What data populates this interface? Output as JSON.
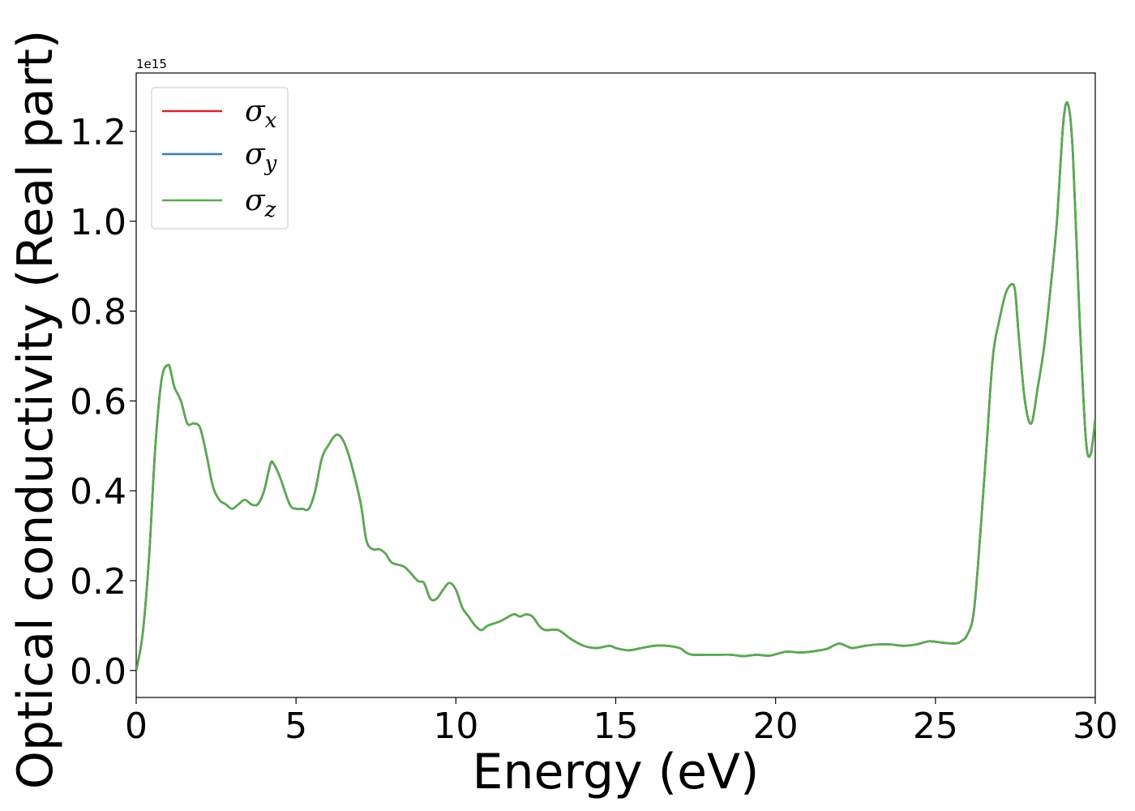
{
  "chart_data": {
    "type": "line",
    "title": "",
    "xlabel": "Energy (eV)",
    "ylabel": "Optical conductivity (Real part)",
    "y_offset_text": "1e15",
    "xlim": [
      0,
      30
    ],
    "ylim": [
      -0.06,
      1.33
    ],
    "y_scale_factor": 1000000000000000.0,
    "xticks": [
      0,
      5,
      10,
      15,
      20,
      25,
      30
    ],
    "xtick_labels": [
      "0",
      "5",
      "10",
      "15",
      "20",
      "25",
      "30"
    ],
    "yticks": [
      0.0,
      0.2,
      0.4,
      0.6,
      0.8,
      1.0,
      1.2
    ],
    "ytick_labels": [
      "0.0",
      "0.2",
      "0.4",
      "0.6",
      "0.8",
      "1.0",
      "1.2"
    ],
    "grid": false,
    "legend_position": "top-left",
    "x": [
      0,
      0.2,
      0.4,
      0.6,
      0.8,
      1.0,
      1.1,
      1.2,
      1.4,
      1.6,
      1.8,
      2.0,
      2.2,
      2.4,
      2.6,
      2.8,
      3.0,
      3.2,
      3.4,
      3.6,
      3.8,
      4.0,
      4.2,
      4.3,
      4.5,
      4.8,
      5.0,
      5.2,
      5.4,
      5.6,
      5.8,
      6.0,
      6.3,
      6.6,
      7.0,
      7.2,
      7.4,
      7.6,
      7.8,
      8.0,
      8.4,
      8.8,
      9.0,
      9.2,
      9.4,
      9.6,
      9.8,
      10.0,
      10.2,
      10.4,
      10.6,
      10.8,
      11.0,
      11.4,
      11.8,
      12.0,
      12.2,
      12.4,
      12.6,
      12.8,
      13.2,
      13.6,
      14.0,
      14.4,
      14.8,
      15.0,
      15.4,
      15.8,
      16.2,
      16.6,
      17.0,
      17.2,
      17.4,
      17.8,
      18.2,
      18.6,
      19.0,
      19.4,
      19.8,
      20.2,
      20.4,
      20.8,
      21.2,
      21.6,
      21.8,
      22.0,
      22.2,
      22.4,
      22.8,
      23.2,
      23.6,
      24.0,
      24.4,
      24.8,
      25.2,
      25.6,
      25.8,
      26.0,
      26.2,
      26.4,
      26.6,
      26.8,
      27.0,
      27.2,
      27.4,
      27.5,
      27.6,
      27.8,
      28.0,
      28.2,
      28.4,
      28.6,
      28.8,
      29.0,
      29.15,
      29.3,
      29.5,
      29.7,
      29.85,
      30.0
    ],
    "series": [
      {
        "name": "σx",
        "color": "#d62728",
        "values": [
          0.0,
          0.08,
          0.25,
          0.5,
          0.65,
          0.68,
          0.66,
          0.63,
          0.6,
          0.55,
          0.55,
          0.54,
          0.48,
          0.41,
          0.38,
          0.37,
          0.36,
          0.37,
          0.38,
          0.37,
          0.37,
          0.4,
          0.46,
          0.46,
          0.43,
          0.37,
          0.36,
          0.36,
          0.36,
          0.4,
          0.47,
          0.5,
          0.525,
          0.49,
          0.38,
          0.29,
          0.27,
          0.27,
          0.26,
          0.24,
          0.23,
          0.2,
          0.195,
          0.16,
          0.16,
          0.18,
          0.195,
          0.18,
          0.14,
          0.12,
          0.1,
          0.09,
          0.1,
          0.11,
          0.125,
          0.12,
          0.125,
          0.12,
          0.1,
          0.09,
          0.09,
          0.07,
          0.055,
          0.05,
          0.055,
          0.05,
          0.045,
          0.05,
          0.055,
          0.055,
          0.05,
          0.04,
          0.035,
          0.035,
          0.035,
          0.035,
          0.032,
          0.035,
          0.033,
          0.04,
          0.042,
          0.04,
          0.043,
          0.048,
          0.055,
          0.06,
          0.055,
          0.05,
          0.055,
          0.058,
          0.058,
          0.055,
          0.058,
          0.065,
          0.062,
          0.06,
          0.065,
          0.08,
          0.13,
          0.3,
          0.5,
          0.7,
          0.78,
          0.84,
          0.86,
          0.84,
          0.75,
          0.6,
          0.55,
          0.63,
          0.72,
          0.85,
          1.0,
          1.22,
          1.26,
          1.15,
          0.8,
          0.52,
          0.48,
          0.56
        ]
      },
      {
        "name": "σy",
        "color": "#3b7cb5",
        "values": [
          0.0,
          0.08,
          0.25,
          0.5,
          0.65,
          0.68,
          0.66,
          0.63,
          0.6,
          0.55,
          0.55,
          0.54,
          0.48,
          0.41,
          0.38,
          0.37,
          0.36,
          0.37,
          0.38,
          0.37,
          0.37,
          0.4,
          0.46,
          0.46,
          0.43,
          0.37,
          0.36,
          0.36,
          0.36,
          0.4,
          0.47,
          0.5,
          0.525,
          0.49,
          0.38,
          0.29,
          0.27,
          0.27,
          0.26,
          0.24,
          0.23,
          0.2,
          0.195,
          0.16,
          0.16,
          0.18,
          0.195,
          0.18,
          0.14,
          0.12,
          0.1,
          0.09,
          0.1,
          0.11,
          0.125,
          0.12,
          0.125,
          0.12,
          0.1,
          0.09,
          0.09,
          0.07,
          0.055,
          0.05,
          0.055,
          0.05,
          0.045,
          0.05,
          0.055,
          0.055,
          0.05,
          0.04,
          0.035,
          0.035,
          0.035,
          0.035,
          0.032,
          0.035,
          0.033,
          0.04,
          0.042,
          0.04,
          0.043,
          0.048,
          0.055,
          0.06,
          0.055,
          0.05,
          0.055,
          0.058,
          0.058,
          0.055,
          0.058,
          0.065,
          0.062,
          0.06,
          0.065,
          0.08,
          0.13,
          0.3,
          0.5,
          0.7,
          0.78,
          0.84,
          0.86,
          0.84,
          0.75,
          0.6,
          0.55,
          0.63,
          0.72,
          0.85,
          1.0,
          1.22,
          1.26,
          1.15,
          0.8,
          0.52,
          0.48,
          0.56
        ]
      },
      {
        "name": "σz",
        "color": "#59ab4d",
        "values": [
          0.0,
          0.08,
          0.25,
          0.5,
          0.65,
          0.68,
          0.66,
          0.63,
          0.6,
          0.55,
          0.55,
          0.54,
          0.48,
          0.41,
          0.38,
          0.37,
          0.36,
          0.37,
          0.38,
          0.37,
          0.37,
          0.4,
          0.46,
          0.46,
          0.43,
          0.37,
          0.36,
          0.36,
          0.36,
          0.4,
          0.47,
          0.5,
          0.525,
          0.49,
          0.38,
          0.29,
          0.27,
          0.27,
          0.26,
          0.24,
          0.23,
          0.2,
          0.195,
          0.16,
          0.16,
          0.18,
          0.195,
          0.18,
          0.14,
          0.12,
          0.1,
          0.09,
          0.1,
          0.11,
          0.125,
          0.12,
          0.125,
          0.12,
          0.1,
          0.09,
          0.09,
          0.07,
          0.055,
          0.05,
          0.055,
          0.05,
          0.045,
          0.05,
          0.055,
          0.055,
          0.05,
          0.04,
          0.035,
          0.035,
          0.035,
          0.035,
          0.032,
          0.035,
          0.033,
          0.04,
          0.042,
          0.04,
          0.043,
          0.048,
          0.055,
          0.06,
          0.055,
          0.05,
          0.055,
          0.058,
          0.058,
          0.055,
          0.058,
          0.065,
          0.062,
          0.06,
          0.065,
          0.08,
          0.13,
          0.3,
          0.5,
          0.7,
          0.78,
          0.84,
          0.86,
          0.84,
          0.75,
          0.6,
          0.55,
          0.63,
          0.72,
          0.85,
          1.0,
          1.22,
          1.26,
          1.15,
          0.8,
          0.52,
          0.48,
          0.56
        ]
      }
    ],
    "legend": [
      {
        "symbol": "σ",
        "sub": "x",
        "color": "#d62728"
      },
      {
        "symbol": "σ",
        "sub": "y",
        "color": "#3b7cb5"
      },
      {
        "symbol": "σ",
        "sub": "z",
        "color": "#59ab4d"
      }
    ]
  }
}
